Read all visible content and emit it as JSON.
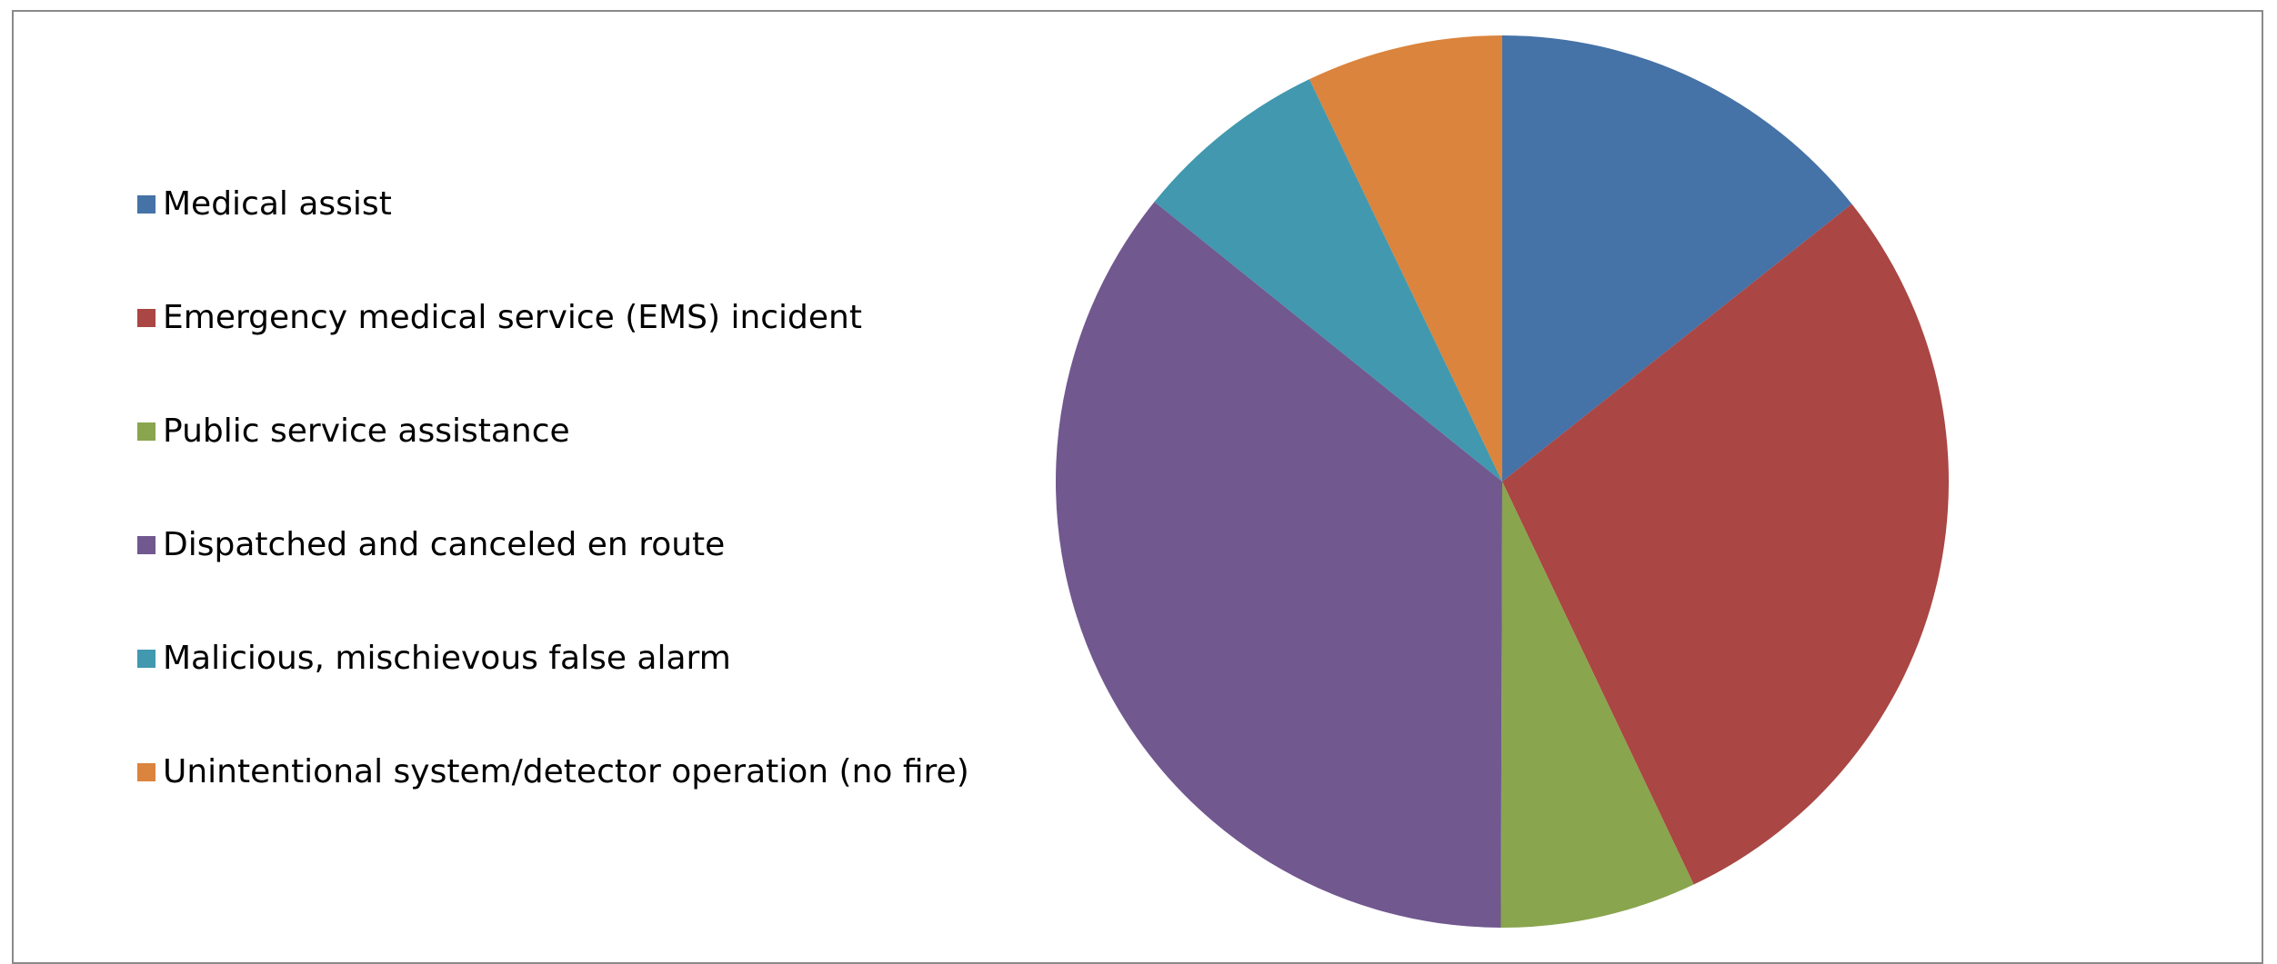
{
  "chart_data": {
    "type": "pie",
    "title": "",
    "legend_position": "left",
    "start_angle_deg": 0,
    "direction": "clockwise",
    "slices": [
      {
        "label": "Medical assist",
        "value": 14.3,
        "color": "#4572A7"
      },
      {
        "label": "Emergency medical service (EMS) incident",
        "value": 28.6,
        "color": "#AA4643"
      },
      {
        "label": "Public service assistance",
        "value": 7.1,
        "color": "#89A54E"
      },
      {
        "label": "Dispatched and canceled en route",
        "value": 35.7,
        "color": "#71588F"
      },
      {
        "label": "Malicious, mischievous false alarm",
        "value": 7.1,
        "color": "#4198AF"
      },
      {
        "label": "Unintentional system/detector operation (no fire)",
        "value": 7.1,
        "color": "#DB843D"
      }
    ]
  }
}
